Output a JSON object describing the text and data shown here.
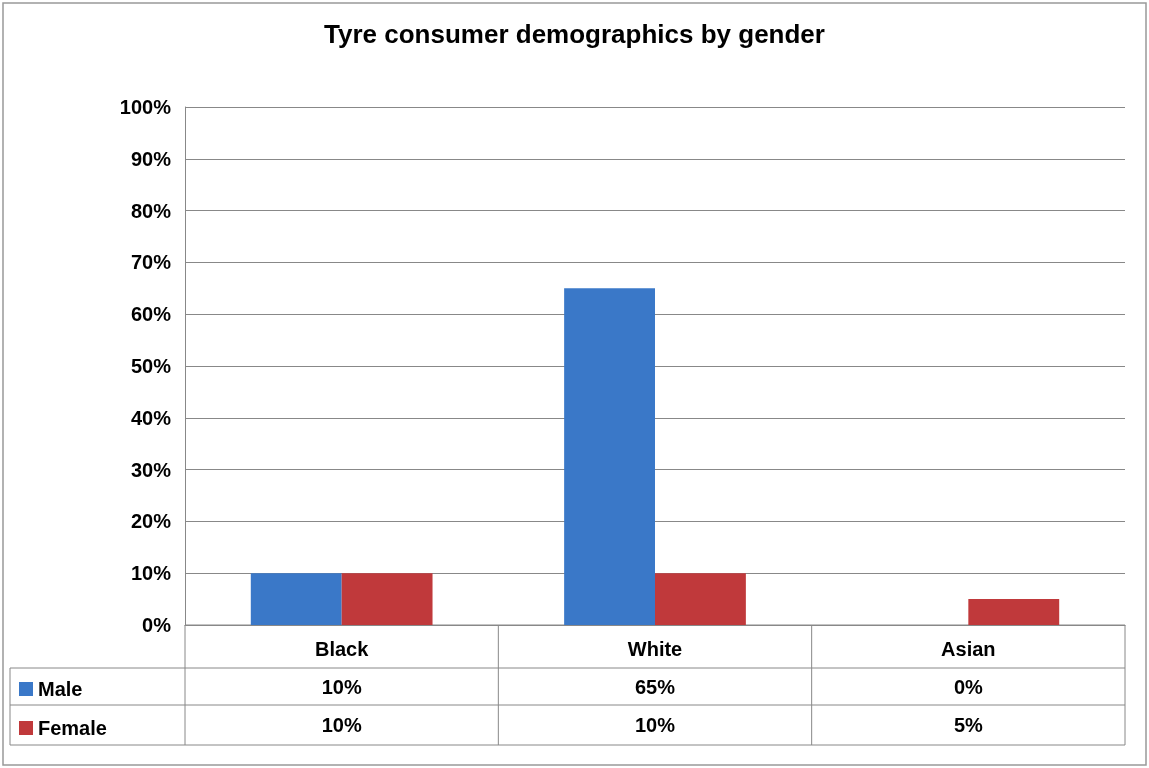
{
  "chart_data": {
    "type": "bar",
    "title": "Tyre consumer demographics by gender",
    "categories": [
      "Black",
      "White",
      "Asian"
    ],
    "series": [
      {
        "name": "Male",
        "color": "#3a78c8",
        "values": [
          10,
          65,
          0
        ],
        "value_labels": [
          "10%",
          "65%",
          "0%"
        ]
      },
      {
        "name": "Female",
        "color": "#c0393b",
        "values": [
          10,
          10,
          5
        ],
        "value_labels": [
          "10%",
          "10%",
          "5%"
        ]
      }
    ],
    "ylim": [
      0,
      100
    ],
    "yticks": [
      {
        "value": 0,
        "label": "0%"
      },
      {
        "value": 10,
        "label": "10%"
      },
      {
        "value": 20,
        "label": "20%"
      },
      {
        "value": 30,
        "label": "30%"
      },
      {
        "value": 40,
        "label": "40%"
      },
      {
        "value": 50,
        "label": "50%"
      },
      {
        "value": 60,
        "label": "60%"
      },
      {
        "value": 70,
        "label": "70%"
      },
      {
        "value": 80,
        "label": "80%"
      },
      {
        "value": 90,
        "label": "90%"
      },
      {
        "value": 100,
        "label": "100%"
      }
    ],
    "grid": "y",
    "legend": "bottom"
  }
}
